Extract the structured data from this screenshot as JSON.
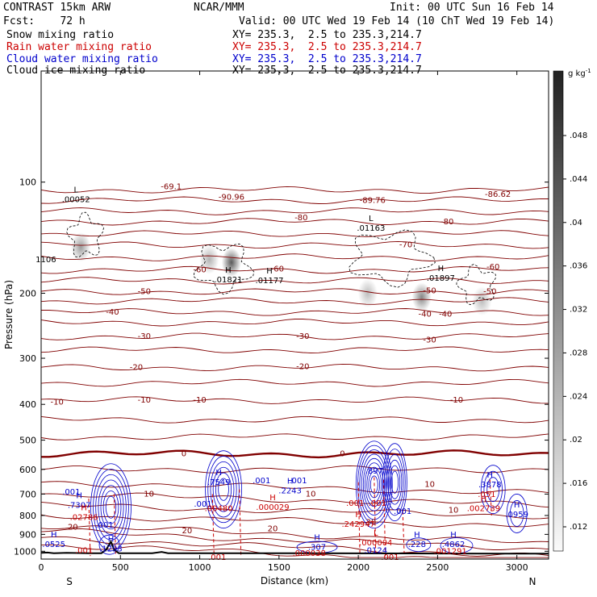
{
  "header": {
    "model": "CONTRAST 15km ARW",
    "org": "NCAR/MMM",
    "init": "Init: 00 UTC Sun 16 Feb 14",
    "fcst": "Fcst:    72 h",
    "valid": "Valid: 00 UTC Wed 19 Feb 14 (10 ChT Wed 19 Feb 14)",
    "fields": [
      {
        "label": "Snow mixing ratio",
        "xy": "XY= 235.3,  2.5 to 235.3,214.7",
        "color": "#000000"
      },
      {
        "label": "Rain water mixing ratio",
        "xy": "XY= 235.3,  2.5 to 235.3,214.7",
        "color": "#cc0000"
      },
      {
        "label": "Cloud water mixing ratio",
        "xy": "XY= 235.3,  2.5 to 235.3,214.7",
        "color": "#0000cc"
      },
      {
        "label": "Cloud ice mixing ratio",
        "xy": "XY= 235.3,  2.5 to 235.3,214.7",
        "color": "#000000"
      }
    ]
  },
  "chart_data": {
    "type": "cross-section",
    "xlabel": "Distance (km)",
    "ylabel": "Pressure (hPa)",
    "x_ticks": [
      0,
      500,
      1000,
      1500,
      2000,
      2500,
      3000
    ],
    "y_ticks": [
      100,
      200,
      300,
      400,
      500,
      600,
      700,
      800,
      900,
      1000
    ],
    "xlim": [
      0,
      3200
    ],
    "ylim": [
      1050,
      50
    ],
    "y_scale": "log",
    "start_label": "S",
    "end_label": "N",
    "colorbar": {
      "unit": "g kg",
      "unit_sup": "-1",
      "ticks": [
        ".048",
        ".044",
        ".04",
        ".036",
        ".032",
        ".028",
        ".024",
        ".02",
        ".016",
        ".012"
      ]
    },
    "temperature_contours": [
      {
        "value": -80,
        "label": "-80",
        "label_x": 1640,
        "p": 125
      },
      {
        "value": -70,
        "label": "-70",
        "label_x": 2300,
        "p": 148
      },
      {
        "value": -60,
        "label": "-60",
        "label_x": 1000,
        "p": 173
      },
      {
        "value": -50,
        "label": "-50",
        "label_x": 650,
        "p": 198
      },
      {
        "value": -40,
        "label": "-40",
        "label_x": 450,
        "p": 225
      },
      {
        "value": -30,
        "label": "-30",
        "label_x": 650,
        "p": 262
      },
      {
        "value": -20,
        "label": "-20",
        "label_x": 600,
        "p": 318
      },
      {
        "value": -10,
        "label": "-10",
        "label_x": 650,
        "p": 390
      },
      {
        "value": 0,
        "label": "0",
        "label_x": 900,
        "p": 545
      },
      {
        "value": 10,
        "label": "10",
        "label_x": 680,
        "p": 700
      },
      {
        "value": 20,
        "label": "20",
        "label_x": 920,
        "p": 880
      }
    ],
    "temperature_extra_labels": [
      {
        "text": "-69.1",
        "x": 820,
        "p": 103
      },
      {
        "text": "-90.96",
        "x": 1200,
        "p": 110
      },
      {
        "text": "-89.76",
        "x": 2090,
        "p": 112
      },
      {
        "text": "-86.62",
        "x": 2880,
        "p": 108
      },
      {
        "text": "-80",
        "x": 2560,
        "p": 128
      },
      {
        "text": "-60",
        "x": 1490,
        "p": 172
      },
      {
        "text": "-60",
        "x": 2850,
        "p": 170
      },
      {
        "text": "-50",
        "x": 2450,
        "p": 197
      },
      {
        "text": "-50",
        "x": 2830,
        "p": 198
      },
      {
        "text": "-40",
        "x": 2420,
        "p": 228
      },
      {
        "text": "-40",
        "x": 2550,
        "p": 228
      },
      {
        "text": "-30",
        "x": 1650,
        "p": 262
      },
      {
        "text": "-30",
        "x": 2450,
        "p": 268
      },
      {
        "text": "-20",
        "x": 1650,
        "p": 316
      },
      {
        "text": "-10",
        "x": 1000,
        "p": 390
      },
      {
        "text": "-10",
        "x": 2620,
        "p": 390
      },
      {
        "text": "-10",
        "x": 100,
        "p": 395
      },
      {
        "text": "0",
        "x": 1900,
        "p": 545
      },
      {
        "text": "10",
        "x": 1700,
        "p": 700
      },
      {
        "text": "10",
        "x": 2450,
        "p": 660
      },
      {
        "text": "10",
        "x": 2600,
        "p": 775
      },
      {
        "text": "20",
        "x": 200,
        "p": 860
      },
      {
        "text": "20",
        "x": 1460,
        "p": 870
      },
      {
        "text": "30",
        "x": 2080,
        "p": 835
      }
    ],
    "extrema_labels": [
      {
        "letter": "L",
        "value": ".00052",
        "x": 220,
        "p": 112,
        "color": "#000000"
      },
      {
        "letter": "",
        "value": "1106",
        "x": 30,
        "p": 163,
        "color": "#000000"
      },
      {
        "letter": "H",
        "value": ".01821",
        "x": 1180,
        "p": 185,
        "color": "#000000"
      },
      {
        "letter": "H",
        "value": ".01177",
        "x": 1440,
        "p": 186,
        "color": "#000000"
      },
      {
        "letter": "L",
        "value": ".01163",
        "x": 2080,
        "p": 134,
        "color": "#000000"
      },
      {
        "letter": "H",
        "value": ".01897",
        "x": 2520,
        "p": 183,
        "color": "#000000"
      },
      {
        "letter": "H",
        "value": ".7307",
        "x": 240,
        "p": 755,
        "color": "#0000cc"
      },
      {
        "letter": "",
        "value": ".001",
        "x": 190,
        "p": 695,
        "color": "#0000cc"
      },
      {
        "letter": "",
        "value": ".001",
        "x": 400,
        "p": 855,
        "color": "#0000cc"
      },
      {
        "letter": "H",
        "value": ".02786",
        "x": 270,
        "p": 815,
        "color": "#cc0000"
      },
      {
        "letter": "H",
        "value": ".0525",
        "x": 80,
        "p": 965,
        "color": "#0000cc"
      },
      {
        "letter": "H",
        "value": ".1293",
        "x": 440,
        "p": 990,
        "color": "#0000cc"
      },
      {
        "letter": "H",
        "value": ".7549",
        "x": 1120,
        "p": 655,
        "color": "#0000cc"
      },
      {
        "letter": "",
        "value": ".001",
        "x": 1020,
        "p": 750,
        "color": "#0000cc"
      },
      {
        "letter": "",
        "value": ".00480",
        "x": 1120,
        "p": 770,
        "color": "#cc0000"
      },
      {
        "letter": "",
        "value": ".001",
        "x": 1390,
        "p": 647,
        "color": "#0000cc"
      },
      {
        "letter": "",
        "value": ".001",
        "x": 1620,
        "p": 647,
        "color": "#0000cc"
      },
      {
        "letter": "H",
        "value": ".2243",
        "x": 1570,
        "p": 690,
        "color": "#0000cc"
      },
      {
        "letter": "H",
        "value": ".000029",
        "x": 1460,
        "p": 765,
        "color": "#cc0000"
      },
      {
        "letter": "",
        "value": ".897",
        "x": 2100,
        "p": 610,
        "color": "#0000cc"
      },
      {
        "letter": "",
        "value": ".001",
        "x": 1980,
        "p": 745,
        "color": "#cc0000"
      },
      {
        "letter": "",
        "value": ".001",
        "x": 2120,
        "p": 745,
        "color": "#cc0000"
      },
      {
        "letter": "",
        "value": ".001",
        "x": 2280,
        "p": 785,
        "color": "#0000cc"
      },
      {
        "letter": "H",
        "value": ".242947",
        "x": 2000,
        "p": 850,
        "color": "#cc0000"
      },
      {
        "letter": "L",
        "value": ".000004",
        "x": 2110,
        "p": 955,
        "color": "#cc0000"
      },
      {
        "letter": "",
        "value": ".0124",
        "x": 2110,
        "p": 1000,
        "color": "#0000cc"
      },
      {
        "letter": "H",
        "value": ".228",
        "x": 2370,
        "p": 965,
        "color": "#0000cc"
      },
      {
        "letter": "H",
        "value": ".4862",
        "x": 2600,
        "p": 965,
        "color": "#0000cc"
      },
      {
        "letter": "",
        "value": ".001291",
        "x": 2580,
        "p": 1005,
        "color": "#cc0000"
      },
      {
        "letter": "H",
        "value": ".3878",
        "x": 2830,
        "p": 665,
        "color": "#0000cc"
      },
      {
        "letter": "",
        "value": ".051",
        "x": 2810,
        "p": 705,
        "color": "#cc0000"
      },
      {
        "letter": "H",
        "value": ".002739",
        "x": 2790,
        "p": 770,
        "color": "#cc0000"
      },
      {
        "letter": "H",
        "value": ".0959",
        "x": 3000,
        "p": 800,
        "color": "#0000cc"
      },
      {
        "letter": "H",
        "value": ".307",
        "x": 1740,
        "p": 980,
        "color": "#0000cc"
      },
      {
        "letter": "",
        "value": ".000038",
        "x": 1690,
        "p": 1020,
        "color": "#cc0000"
      },
      {
        "letter": "",
        "value": ".001",
        "x": 1110,
        "p": 1045,
        "color": "#cc0000"
      },
      {
        "letter": "",
        "value": ".001",
        "x": 2200,
        "p": 1045,
        "color": "#cc0000"
      },
      {
        "letter": "",
        "value": ".001",
        "x": 270,
        "p": 1000,
        "color": "#cc0000"
      }
    ],
    "snow_blobs": [
      {
        "x": 250,
        "p": 150,
        "intensity": 0.45
      },
      {
        "x": 1060,
        "p": 162,
        "intensity": 0.35
      },
      {
        "x": 1200,
        "p": 165,
        "intensity": 0.75
      },
      {
        "x": 2060,
        "p": 200,
        "intensity": 0.3
      },
      {
        "x": 2400,
        "p": 205,
        "intensity": 0.55
      },
      {
        "x": 2780,
        "p": 210,
        "intensity": 0.3
      }
    ],
    "terrain": [
      [
        0,
        1010
      ],
      [
        40,
        1008
      ],
      [
        80,
        1012
      ],
      [
        160,
        1010
      ],
      [
        300,
        1012
      ],
      [
        380,
        1012
      ],
      [
        410,
        990
      ],
      [
        440,
        942
      ],
      [
        460,
        990
      ],
      [
        490,
        1012
      ],
      [
        700,
        1012
      ],
      [
        760,
        1004
      ],
      [
        800,
        1012
      ],
      [
        1500,
        1012
      ],
      [
        2000,
        1013
      ],
      [
        2500,
        1014
      ],
      [
        3000,
        1015
      ],
      [
        3200,
        1015
      ]
    ]
  }
}
